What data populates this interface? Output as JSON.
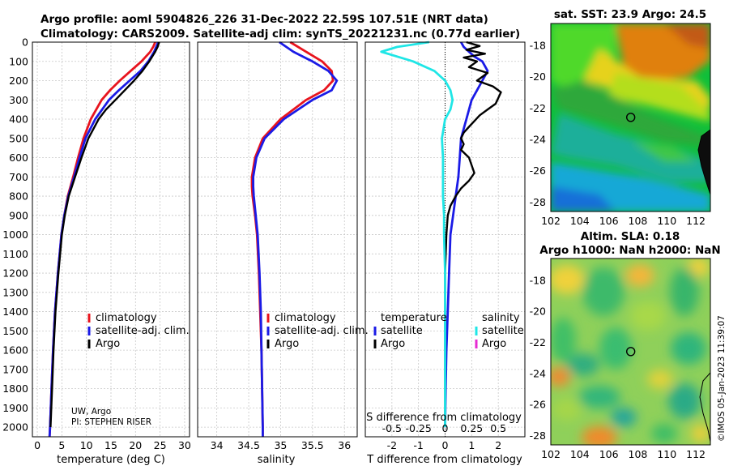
{
  "header": {
    "line1": "Argo profile: aoml 5904826_226 31-Dec-2022 22.59S 107.51E (NRT data)",
    "line2": "Climatology: CARS2009. Satellite-adj clim: synTS_20221231.nc (0.77d earlier)"
  },
  "colors": {
    "climatology": "#e8141e",
    "satellite": "#1a1ae6",
    "argo": "#000000",
    "satellite_s": "#1fe6e6",
    "argo_s": "#e62ad2"
  },
  "depth_ticks": [
    0,
    100,
    200,
    300,
    400,
    500,
    600,
    700,
    800,
    900,
    1000,
    1100,
    1200,
    1300,
    1400,
    1500,
    1600,
    1700,
    1800,
    1900,
    2000
  ],
  "annotations": {
    "institution": "UW, Argo",
    "pi": "PI: STEPHEN RISER",
    "watermark": "©IMOS 05-Jan-2023 11:39:07"
  },
  "chart_data": [
    {
      "type": "line",
      "name": "temperature-panel",
      "xlabel": "temperature (deg C)",
      "ylabel": "",
      "xlim": [
        -1,
        31
      ],
      "ylim": [
        2050,
        0
      ],
      "x_ticks": [
        0,
        5,
        10,
        15,
        20,
        25,
        30
      ],
      "legend": [
        "climatology",
        "satellite-adj. clim.",
        "Argo"
      ],
      "series": [
        {
          "name": "climatology",
          "depth": [
            0,
            25,
            50,
            100,
            150,
            200,
            250,
            300,
            400,
            500,
            600,
            700,
            800,
            900,
            1000,
            1200,
            1400,
            1600,
            1800,
            2000,
            2050
          ],
          "values": [
            24,
            23.6,
            23,
            21.2,
            19,
            16.8,
            14.8,
            13.1,
            10.9,
            9.4,
            8.3,
            7.3,
            6.2,
            5.5,
            4.9,
            4.2,
            3.6,
            3.2,
            2.9,
            2.6,
            2.5
          ]
        },
        {
          "name": "satellite-adj. clim.",
          "depth": [
            0,
            25,
            50,
            100,
            150,
            200,
            250,
            300,
            400,
            500,
            600,
            700,
            800,
            900,
            1000,
            1200,
            1400,
            1600,
            1800,
            2000,
            2050
          ],
          "values": [
            24.6,
            24.2,
            23.8,
            22.6,
            21,
            18.8,
            16.6,
            14.6,
            11.8,
            9.8,
            8.6,
            7.5,
            6.3,
            5.5,
            4.9,
            4.2,
            3.6,
            3.2,
            2.9,
            2.6,
            2.5
          ]
        },
        {
          "name": "Argo",
          "depth": [
            0,
            25,
            50,
            100,
            150,
            200,
            250,
            300,
            350,
            400,
            500,
            600,
            700,
            800,
            900,
            1000,
            1200,
            1400,
            1600,
            1800,
            2000
          ],
          "values": [
            24.8,
            24.5,
            24,
            22.8,
            21.4,
            19.7,
            17.8,
            15.9,
            14,
            12.5,
            10.4,
            9,
            7.7,
            6.4,
            5.6,
            5,
            4.3,
            3.7,
            3.3,
            3,
            2.7
          ]
        }
      ]
    },
    {
      "type": "line",
      "name": "salinity-panel",
      "xlabel": "salinity",
      "ylabel": "",
      "xlim": [
        33.7,
        36.2
      ],
      "ylim": [
        2050,
        0
      ],
      "x_ticks": [
        34,
        34.5,
        35,
        35.5,
        36
      ],
      "legend": [
        "climatology",
        "satellite-adj. clim.",
        "Argo"
      ],
      "series": [
        {
          "name": "climatology",
          "depth": [
            0,
            50,
            100,
            150,
            200,
            250,
            300,
            400,
            500,
            600,
            700,
            750,
            800,
            900,
            1000,
            1200,
            1400,
            1600,
            1800,
            2000,
            2050
          ],
          "values": [
            35.15,
            35.4,
            35.65,
            35.8,
            35.82,
            35.68,
            35.4,
            35,
            34.72,
            34.6,
            34.55,
            34.55,
            34.56,
            34.6,
            34.63,
            34.66,
            34.68,
            34.7,
            34.71,
            34.72,
            34.72
          ]
        },
        {
          "name": "satellite-adj. clim.",
          "depth": [
            0,
            50,
            100,
            150,
            200,
            250,
            300,
            400,
            500,
            600,
            700,
            750,
            800,
            900,
            1000,
            1200,
            1400,
            1600,
            1800,
            2000,
            2050
          ],
          "values": [
            34.98,
            35.2,
            35.5,
            35.75,
            35.88,
            35.8,
            35.5,
            35.05,
            34.75,
            34.62,
            34.57,
            34.57,
            34.58,
            34.61,
            34.64,
            34.67,
            34.69,
            34.7,
            34.71,
            34.72,
            34.72
          ]
        }
      ]
    },
    {
      "type": "line",
      "name": "difference-panel",
      "xlabel": "T difference from climatology",
      "secondary_xlabel": "S difference from climatology",
      "xlim": [
        -3,
        3
      ],
      "ylim": [
        2050,
        0
      ],
      "x_ticks": [
        -2,
        -1,
        0,
        1,
        2
      ],
      "s_ticks": [
        "-0.5",
        "-0.25",
        "0",
        "0.25",
        "0.5"
      ],
      "legend_headers": [
        "temperature",
        "salinity"
      ],
      "legend": [
        "satellite",
        "Argo",
        "satellite",
        "Argo"
      ],
      "series": [
        {
          "name": "T satellite",
          "depth": [
            0,
            25,
            50,
            75,
            100,
            150,
            200,
            250,
            300,
            400,
            500,
            600,
            700,
            800,
            900,
            1000,
            1200,
            1400,
            1600,
            1800,
            2000
          ],
          "values": [
            0.6,
            0.7,
            0.9,
            1.1,
            1.4,
            1.6,
            1.4,
            1.2,
            1.0,
            0.8,
            0.6,
            0.55,
            0.5,
            0.4,
            0.3,
            0.2,
            0.15,
            0.1,
            0.05,
            0.02,
            0
          ]
        },
        {
          "name": "T Argo",
          "depth": [
            0,
            20,
            40,
            60,
            80,
            100,
            130,
            160,
            200,
            230,
            260,
            290,
            320,
            350,
            380,
            410,
            440,
            470,
            500,
            530,
            560,
            600,
            640,
            680,
            720,
            760,
            800,
            850,
            900,
            1000,
            1200,
            1400,
            1600,
            1800,
            2000
          ],
          "values": [
            0.8,
            1.3,
            0.8,
            1.5,
            0.7,
            1.2,
            0.9,
            1.6,
            1.2,
            1.8,
            2.1,
            2.0,
            1.9,
            1.6,
            1.3,
            1.1,
            0.9,
            0.7,
            0.6,
            0.7,
            0.6,
            0.9,
            1.0,
            1.1,
            0.9,
            0.6,
            0.4,
            0.2,
            0.1,
            0.05,
            0,
            0,
            0,
            0,
            0
          ]
        },
        {
          "name": "S satellite",
          "depth": [
            0,
            25,
            50,
            75,
            100,
            150,
            200,
            250,
            300,
            350,
            400,
            500,
            600,
            700,
            800,
            900,
            1000,
            1200,
            1400,
            1600,
            1800,
            2000
          ],
          "values": [
            -0.15,
            -0.45,
            -0.6,
            -0.45,
            -0.3,
            -0.1,
            0,
            0.05,
            0.07,
            0.05,
            0,
            -0.03,
            -0.02,
            -0.02,
            -0.02,
            -0.01,
            -0.01,
            0,
            0,
            0,
            0,
            0
          ]
        }
      ]
    },
    {
      "type": "heatmap",
      "name": "sst-map",
      "title": "sat. SST: 23.9 Argo: 24.5",
      "x_ticks": [
        102,
        104,
        106,
        108,
        110,
        112
      ],
      "y_ticks": [
        -18,
        -20,
        -22,
        -24,
        -26,
        -28
      ],
      "xlim": [
        102,
        113
      ],
      "ylim": [
        -28.6,
        -16.6
      ],
      "marker": [
        107.51,
        -22.59
      ]
    },
    {
      "type": "heatmap",
      "name": "sla-map",
      "title_line1": "Altim. SLA: 0.18",
      "title_line2": "Argo h1000: NaN h2000: NaN",
      "x_ticks": [
        102,
        104,
        106,
        108,
        110,
        112
      ],
      "y_ticks": [
        -18,
        -20,
        -22,
        -24,
        -26,
        -28
      ],
      "xlim": [
        102,
        113
      ],
      "ylim": [
        -28.6,
        -16.6
      ],
      "marker": [
        107.51,
        -22.59
      ]
    }
  ]
}
